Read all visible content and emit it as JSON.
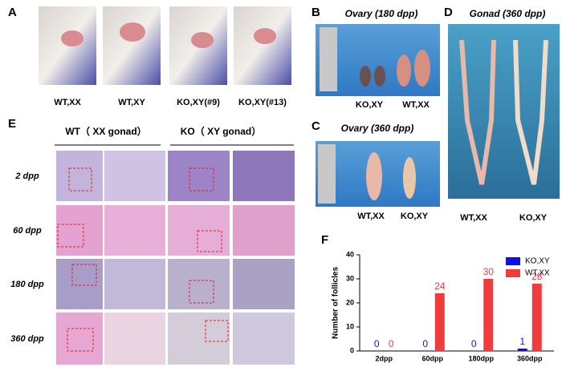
{
  "panel_a": {
    "letter": "A",
    "captions": [
      "WT,XX",
      "WT,XY",
      "KO,XY(#9)",
      "KO,XY(#13)"
    ]
  },
  "panel_b": {
    "letter": "B",
    "title": "Ovary (180 dpp)",
    "captions": [
      "KO,XY",
      "WT,XX"
    ]
  },
  "panel_c": {
    "letter": "C",
    "title": "Ovary (360 dpp)",
    "captions": [
      "WT,XX",
      "KO,XY"
    ]
  },
  "panel_d": {
    "letter": "D",
    "title": "Gonad  (360 dpp)",
    "captions": [
      "WT,XX",
      "KO,XY"
    ]
  },
  "panel_e": {
    "letter": "E",
    "headers": [
      "WT（ XX gonad）",
      "KO（ XY gonad）"
    ],
    "rows": [
      "2 dpp",
      "60 dpp",
      "180 dpp",
      "360 dpp"
    ]
  },
  "panel_f": {
    "letter": "F"
  },
  "chart_data": {
    "type": "bar",
    "y_label": "Number of follicles",
    "categories": [
      "2dpp",
      "60dpp",
      "180dpp",
      "360dpp"
    ],
    "series": [
      {
        "name": "KO,XY",
        "color": "#1010e0",
        "values": [
          0,
          0,
          0,
          1
        ]
      },
      {
        "name": "WT,XX",
        "color": "#f03c3c",
        "values": [
          0,
          24,
          30,
          28
        ]
      }
    ],
    "ylim": [
      0,
      40
    ],
    "yticks": [
      0,
      10,
      20,
      30,
      40
    ],
    "legend": "upper right"
  }
}
